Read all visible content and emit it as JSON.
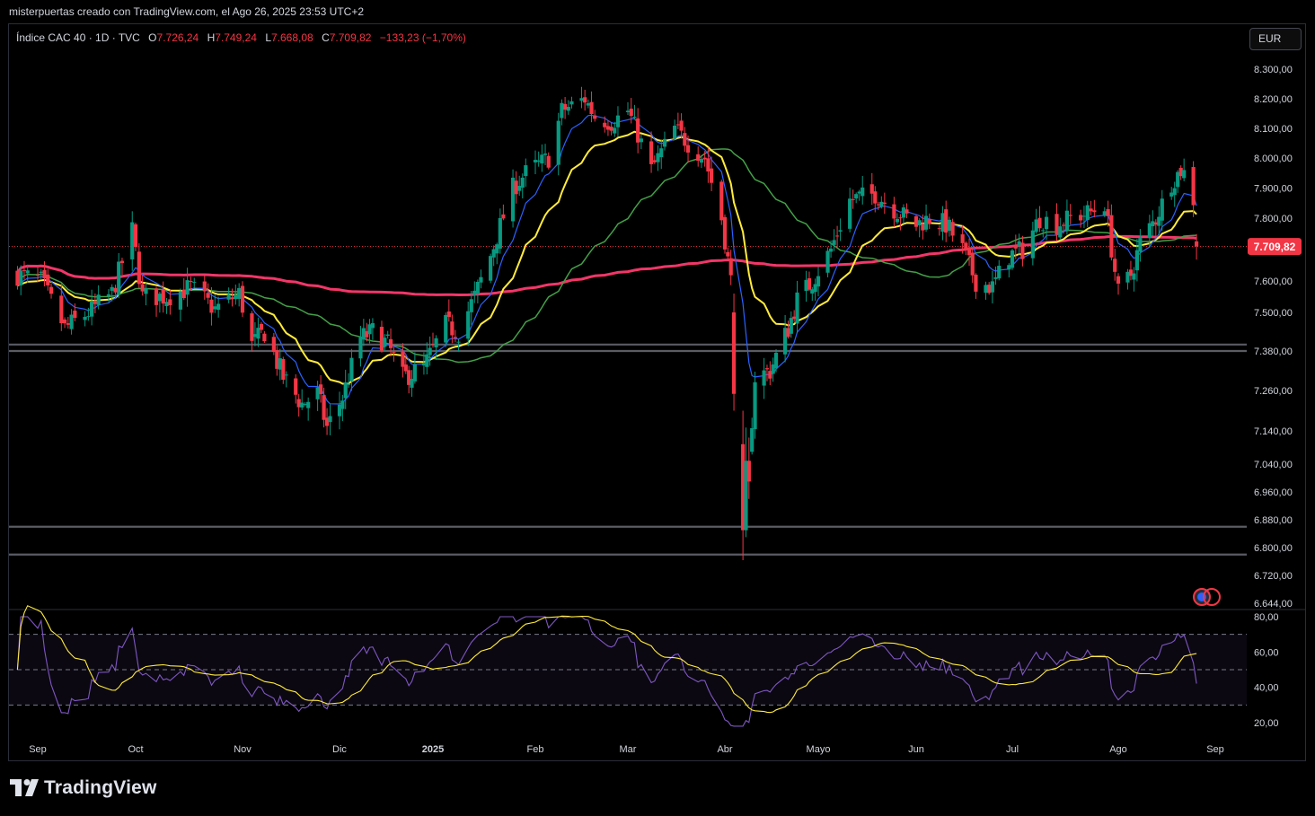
{
  "header": {
    "attribution": "misterpuertas creado con TradingView.com, el Ago 26, 2025 23:53 UTC+2"
  },
  "legend": {
    "symbol": "Índice CAC 40 · 1D · TVC",
    "open_label": "O",
    "open": "7.726,24",
    "high_label": "H",
    "high": "7.749,24",
    "low_label": "L",
    "low": "7.668,08",
    "close_label": "C",
    "close": "7.709,82",
    "change": "−133,23 (−1,70%)"
  },
  "currency_button": "EUR",
  "last_price_label": "7.709,82",
  "brand": {
    "name": "TradingView"
  },
  "colors": {
    "up": "#089981",
    "down": "#f23645",
    "ema_fast": "#2962ff",
    "ema_mid": "#ffeb3b",
    "sma_50": "#43a047",
    "sma_200": "#f23669",
    "rsi": "#7e57c2",
    "rsi_ma": "#ffeb3b"
  },
  "chart_data": [
    {
      "type": "candlestick",
      "price_axis_ticks": [
        "8.300,00",
        "8.200,00",
        "8.100,00",
        "8.000,00",
        "7.900,00",
        "7.800,00",
        "7.709,82",
        "7.600,00",
        "7.500,00",
        "7.380,00",
        "7.260,00",
        "7.140,00",
        "7.040,00",
        "6.960,00",
        "6.880,00",
        "6.800,00",
        "6.720,00",
        "6.644,00"
      ],
      "time_axis_ticks": [
        "Sep",
        "Oct",
        "Nov",
        "Dic",
        "2025",
        "Feb",
        "Mar",
        "Abr",
        "Mayo",
        "Jun",
        "Jul",
        "Ago",
        "Sep"
      ],
      "ylim": [
        6644,
        8330
      ],
      "horizontal_levels": [
        7400,
        7380,
        6860,
        6780
      ],
      "last_price": 7709.82,
      "anchors": [
        [
          "2024-08-27",
          7620
        ],
        [
          "2024-09-03",
          7600
        ],
        [
          "2024-09-10",
          7450
        ],
        [
          "2024-09-17",
          7500
        ],
        [
          "2024-09-24",
          7560
        ],
        [
          "2024-09-30",
          7760
        ],
        [
          "2024-10-03",
          7550
        ],
        [
          "2024-10-10",
          7550
        ],
        [
          "2024-10-17",
          7580
        ],
        [
          "2024-10-24",
          7510
        ],
        [
          "2024-10-31",
          7560
        ],
        [
          "2024-11-04",
          7400
        ],
        [
          "2024-11-08",
          7440
        ],
        [
          "2024-11-14",
          7300
        ],
        [
          "2024-11-20",
          7220
        ],
        [
          "2024-11-25",
          7250
        ],
        [
          "2024-11-28",
          7150
        ],
        [
          "2024-12-03",
          7240
        ],
        [
          "2024-12-09",
          7420
        ],
        [
          "2024-12-13",
          7440
        ],
        [
          "2024-12-18",
          7400
        ],
        [
          "2024-12-23",
          7300
        ],
        [
          "2024-12-30",
          7330
        ],
        [
          "2025-01-06",
          7460
        ],
        [
          "2025-01-10",
          7440
        ],
        [
          "2025-01-15",
          7550
        ],
        [
          "2025-01-20",
          7680
        ],
        [
          "2025-01-27",
          7900
        ],
        [
          "2025-01-31",
          7950
        ],
        [
          "2025-02-07",
          8000
        ],
        [
          "2025-02-11",
          8160
        ],
        [
          "2025-02-18",
          8200
        ],
        [
          "2025-02-21",
          8140
        ],
        [
          "2025-02-26",
          8120
        ],
        [
          "2025-03-03",
          8160
        ],
        [
          "2025-03-06",
          8080
        ],
        [
          "2025-03-10",
          7960
        ],
        [
          "2025-03-13",
          8020
        ],
        [
          "2025-03-17",
          8100
        ],
        [
          "2025-03-21",
          8050
        ],
        [
          "2025-03-26",
          8000
        ],
        [
          "2025-03-31",
          7800
        ],
        [
          "2025-04-03",
          7600
        ],
        [
          "2025-04-07",
          6900
        ],
        [
          "2025-04-09",
          7050
        ],
        [
          "2025-04-11",
          7300
        ],
        [
          "2025-04-16",
          7320
        ],
        [
          "2025-04-22",
          7450
        ],
        [
          "2025-04-25",
          7540
        ],
        [
          "2025-04-30",
          7600
        ],
        [
          "2025-05-06",
          7700
        ],
        [
          "2025-05-12",
          7860
        ],
        [
          "2025-05-15",
          7870
        ],
        [
          "2025-05-20",
          7880
        ],
        [
          "2025-05-26",
          7830
        ],
        [
          "2025-06-02",
          7780
        ],
        [
          "2025-06-06",
          7800
        ],
        [
          "2025-06-11",
          7780
        ],
        [
          "2025-06-16",
          7700
        ],
        [
          "2025-06-20",
          7600
        ],
        [
          "2025-06-25",
          7580
        ],
        [
          "2025-06-30",
          7680
        ],
        [
          "2025-07-04",
          7700
        ],
        [
          "2025-07-09",
          7800
        ],
        [
          "2025-07-14",
          7780
        ],
        [
          "2025-07-18",
          7800
        ],
        [
          "2025-07-24",
          7820
        ],
        [
          "2025-07-28",
          7850
        ],
        [
          "2025-08-01",
          7560
        ],
        [
          "2025-08-05",
          7620
        ],
        [
          "2025-08-08",
          7720
        ],
        [
          "2025-08-13",
          7800
        ],
        [
          "2025-08-18",
          7920
        ],
        [
          "2025-08-21",
          7960
        ],
        [
          "2025-08-22",
          7950
        ],
        [
          "2025-08-25",
          7843
        ],
        [
          "2025-08-26",
          7709.82
        ]
      ]
    },
    {
      "type": "line",
      "name": "RSI",
      "rsi_axis_ticks": [
        "80,00",
        "60,00",
        "40,00",
        "20,00"
      ],
      "ylim": [
        14,
        82
      ],
      "bands": [
        70,
        50,
        30
      ]
    }
  ]
}
